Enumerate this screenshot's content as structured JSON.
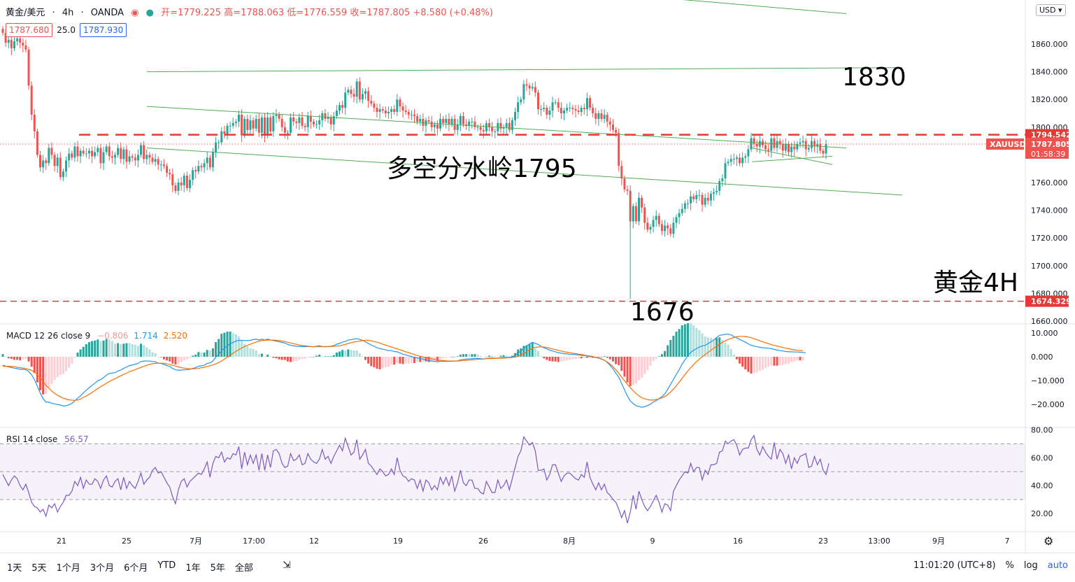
{
  "header": {
    "symbol": "黄金/美元",
    "interval": "4h",
    "broker": "OANDA",
    "ohlc": "开=1779.225 高=1788.063 低=1776.559 收=1787.805 +8.580 (+0.48%)"
  },
  "price_boxes": {
    "bid": "1787.680",
    "spread": "25.0",
    "ask": "1787.930"
  },
  "currency_button": "USD",
  "footer": {
    "ranges": [
      "1天",
      "5天",
      "1个月",
      "3个月",
      "6个月",
      "YTD",
      "1年",
      "5年",
      "全部"
    ],
    "time": "11:01:20 (UTC+8)",
    "percent": "%",
    "log": "log",
    "auto": "auto"
  },
  "macd_label": "MACD 12 26 close 9",
  "macd_values": [
    "−0.806",
    "1.714",
    "2.520"
  ],
  "rsi_label": "RSI 14 close",
  "rsi_value": "56.57",
  "colors": {
    "up": "#26a69a",
    "down": "#ef5350",
    "channel": "#4caf50",
    "macd": "#2196f3",
    "signal": "#ff6d00",
    "rsi": "#7e57c2",
    "dash": "#e53935"
  },
  "chart_data": {
    "type": "candlestick",
    "price_axis_ticks": [
      1860,
      1840,
      1820,
      1800,
      1780,
      1760,
      1740,
      1720,
      1700,
      1680,
      1660
    ],
    "price_axis_labels": [
      "1860.000",
      "1840.000",
      "1820.000",
      "1800.000",
      "1780.000",
      "1760.000",
      "1740.000",
      "1720.000",
      "1700.000",
      "1680.000",
      "1660.000"
    ],
    "macd_axis_labels": [
      "10.000",
      "0.000",
      "−10.000",
      "−20.000"
    ],
    "rsi_axis_labels": [
      "80.00",
      "60.00",
      "40.00",
      "20.00"
    ],
    "time_axis_labels": [
      "21",
      "25",
      "7月",
      "17:00",
      "12",
      "19",
      "26",
      "8月",
      "9",
      "16",
      "23",
      "13:00",
      "9月",
      "7"
    ],
    "ylim": [
      1655,
      1880
    ],
    "closes": [
      1868,
      1861,
      1863,
      1857,
      1862,
      1864,
      1861,
      1859,
      1856,
      1830,
      1809,
      1797,
      1780,
      1771,
      1776,
      1774,
      1785,
      1780,
      1772,
      1778,
      1764,
      1768,
      1776,
      1781,
      1778,
      1786,
      1779,
      1783,
      1781,
      1781,
      1783,
      1779,
      1782,
      1785,
      1774,
      1782,
      1786,
      1779,
      1778,
      1780,
      1785,
      1777,
      1784,
      1775,
      1779,
      1778,
      1776,
      1780,
      1787,
      1777,
      1780,
      1778,
      1775,
      1777,
      1773,
      1773,
      1772,
      1767,
      1766,
      1758,
      1754,
      1760,
      1758,
      1765,
      1756,
      1762,
      1769,
      1768,
      1772,
      1771,
      1774,
      1778,
      1771,
      1782,
      1789,
      1789,
      1797,
      1795,
      1801,
      1801,
      1803,
      1804,
      1809,
      1794,
      1806,
      1798,
      1805,
      1799,
      1806,
      1796,
      1807,
      1794,
      1807,
      1797,
      1808,
      1809,
      1806,
      1800,
      1796,
      1796,
      1807,
      1804,
      1803,
      1807,
      1801,
      1800,
      1808,
      1804,
      1802,
      1802,
      1805,
      1810,
      1806,
      1807,
      1802,
      1808,
      1812,
      1816,
      1814,
      1825,
      1827,
      1824,
      1822,
      1833,
      1820,
      1824,
      1826,
      1819,
      1817,
      1814,
      1811,
      1813,
      1812,
      1810,
      1811,
      1813,
      1811,
      1820,
      1815,
      1812,
      1811,
      1809,
      1809,
      1808,
      1804,
      1806,
      1801,
      1805,
      1804,
      1800,
      1802,
      1799,
      1806,
      1803,
      1806,
      1802,
      1806,
      1798,
      1802,
      1808,
      1802,
      1801,
      1804,
      1804,
      1800,
      1800,
      1798,
      1797,
      1803,
      1800,
      1797,
      1797,
      1803,
      1799,
      1800,
      1803,
      1798,
      1805,
      1811,
      1818,
      1820,
      1831,
      1830,
      1828,
      1829,
      1825,
      1813,
      1813,
      1814,
      1809,
      1812,
      1818,
      1818,
      1814,
      1810,
      1812,
      1814,
      1814,
      1813,
      1812,
      1811,
      1814,
      1813,
      1821,
      1814,
      1810,
      1806,
      1810,
      1806,
      1809,
      1804,
      1802,
      1798,
      1796,
      1772,
      1763,
      1755,
      1754,
      1732,
      1743,
      1732,
      1749,
      1742,
      1731,
      1726,
      1728,
      1733,
      1736,
      1730,
      1725,
      1729,
      1727,
      1723,
      1731,
      1735,
      1738,
      1741,
      1745,
      1745,
      1750,
      1748,
      1751,
      1751,
      1744,
      1749,
      1747,
      1752,
      1753,
      1754,
      1761,
      1763,
      1774,
      1775,
      1777,
      1777,
      1778,
      1774,
      1778,
      1779,
      1784,
      1792,
      1788,
      1786,
      1790,
      1787,
      1784,
      1783,
      1792,
      1785,
      1790,
      1788,
      1783,
      1788,
      1782,
      1786,
      1784,
      1788,
      1789,
      1790,
      1784,
      1785,
      1790,
      1786,
      1788,
      1783,
      1781,
      1788
    ],
    "macd": [
      -3.5,
      -3.9,
      -4.3,
      -4.5,
      -4.8,
      -5,
      -5.3,
      -5.3,
      -5.4,
      -6.2,
      -7.6,
      -9.6,
      -12.4,
      -15.2,
      -17.6,
      -19.1,
      -19.1,
      -19.6,
      -19.8,
      -20.1,
      -20.3,
      -20.7,
      -20.6,
      -20.2,
      -19.6,
      -18.5,
      -17.4,
      -16.4,
      -15.2,
      -14.1,
      -13,
      -12,
      -11.1,
      -10.1,
      -9.6,
      -8.8,
      -7.7,
      -7.1,
      -6.8,
      -6.7,
      -6,
      -5.6,
      -4.9,
      -4.3,
      -3.7,
      -3.5,
      -3.1,
      -2.8,
      -2,
      -1.8,
      -1.8,
      -1.8,
      -2,
      -2.1,
      -2.7,
      -2.8,
      -3.3,
      -3.7,
      -4.1,
      -4.9,
      -5.4,
      -5.7,
      -5.6,
      -5.5,
      -5.4,
      -5.3,
      -4.9,
      -4.6,
      -4,
      -3.8,
      -3.6,
      -2.8,
      -2.6,
      -1.8,
      -0.2,
      1,
      2.6,
      3.6,
      4.6,
      5.4,
      6,
      6.6,
      6.9,
      6.9,
      6.8,
      6.8,
      6.9,
      7.2,
      7.4,
      7,
      7.4,
      7,
      7.4,
      7.1,
      6.8,
      6.6,
      6.3,
      6,
      5.8,
      5.2,
      4.8,
      4.6,
      4.4,
      4.3,
      4.3,
      4.2,
      4.3,
      4.3,
      4.2,
      4.4,
      4.6,
      4.3,
      4.3,
      4.3,
      4.4,
      4.7,
      5.3,
      5.6,
      6.2,
      6.4,
      7,
      7.2,
      7.4,
      7.6,
      7.3,
      6.9,
      6.3,
      5.6,
      4.9,
      4.4,
      3.8,
      3.4,
      3.2,
      2.9,
      2.6,
      2.6,
      2.2,
      2.1,
      1.6,
      1.1,
      0.8,
      0.4,
      0.1,
      -0.3,
      -0.5,
      -0.8,
      -1,
      -1.3,
      -1.6,
      -1.8,
      -1.9,
      -2.1,
      -1.9,
      -1.9,
      -1.9,
      -1.9,
      -1.9,
      -1.8,
      -1.7,
      -1.3,
      -1.1,
      -1,
      -0.9,
      -0.8,
      -0.7,
      -0.7,
      -0.8,
      -0.9,
      -0.8,
      -0.6,
      -0.5,
      -0.6,
      -0.6,
      -0.4,
      -0.3,
      -0.3,
      -0.3,
      -0.1,
      0.6,
      1.6,
      2.4,
      3.5,
      4.4,
      5.4,
      6.1,
      5.6,
      5.2,
      4.3,
      3.8,
      3.3,
      2.8,
      2.4,
      2.1,
      1.7,
      1.5,
      1.3,
      1.2,
      1.1,
      1,
      0.9,
      0.8,
      0.6,
      0.5,
      0.3,
      0.1,
      -0.1,
      -0.3,
      -0.6,
      -1,
      -1.4,
      -2.4,
      -3.6,
      -5.1,
      -6.9,
      -8.6,
      -11.3,
      -13.9,
      -16.5,
      -18.6,
      -19.7,
      -20.6,
      -20.9,
      -21.2,
      -21,
      -20.5,
      -19.9,
      -19,
      -18.4,
      -17.6,
      -16.8,
      -15.6,
      -13.7,
      -11.6,
      -9.6,
      -7.4,
      -5.4,
      -3.1,
      -1.3,
      0.4,
      1.8,
      2.7,
      3.4,
      4.1,
      4.5,
      4.8,
      5.5,
      6.3,
      7,
      8.1,
      9,
      9.2,
      9.4,
      9.5,
      9.2,
      8.5,
      7.9,
      7.3,
      6.7,
      6.1,
      5.4,
      4.8,
      4.5,
      4.2,
      4,
      3.8,
      3.7,
      3.6,
      3.4,
      3.1,
      2.8,
      2.6,
      2.4,
      2.2,
      2.1,
      2.1,
      2,
      2,
      1.9,
      1.8,
      1.7
    ],
    "signal": [
      -4,
      -4,
      -4,
      -4.1,
      -4.2,
      -4.4,
      -4.6,
      -4.8,
      -5,
      -5.3,
      -5.7,
      -6.5,
      -7.5,
      -8.8,
      -10.4,
      -12,
      -13.2,
      -14.4,
      -15.4,
      -16.2,
      -16.8,
      -17.4,
      -17.8,
      -18.1,
      -18.3,
      -18.3,
      -18.2,
      -17.8,
      -17.1,
      -16.5,
      -15.8,
      -15,
      -14.2,
      -13.4,
      -12.6,
      -11.9,
      -11.1,
      -10.4,
      -9.8,
      -9.2,
      -8.6,
      -8,
      -7.4,
      -6.9,
      -6.3,
      -5.9,
      -5.4,
      -4.9,
      -4.5,
      -4,
      -3.6,
      -3.2,
      -2.9,
      -2.8,
      -2.7,
      -2.7,
      -2.8,
      -3,
      -3.2,
      -3.6,
      -3.9,
      -4.3,
      -4.6,
      -4.8,
      -4.9,
      -5.1,
      -5.1,
      -5,
      -4.9,
      -4.6,
      -4.4,
      -4.1,
      -3.8,
      -3.4,
      -3,
      -2.4,
      -1.8,
      -1,
      -0.2,
      0.6,
      1.5,
      2.3,
      3,
      3.7,
      4.3,
      4.8,
      5.3,
      5.7,
      6.2,
      6.5,
      6.8,
      6.9,
      7,
      7,
      7,
      6.9,
      6.8,
      6.6,
      6.4,
      6.1,
      5.8,
      5.5,
      5.2,
      4.9,
      4.7,
      4.6,
      4.4,
      4.3,
      4.2,
      4.2,
      4.2,
      4.2,
      4.2,
      4.2,
      4.3,
      4.4,
      4.5,
      4.6,
      4.9,
      5.2,
      5.6,
      5.9,
      6.2,
      6.4,
      6.6,
      6.8,
      6.9,
      6.9,
      6.7,
      6.4,
      6.1,
      5.8,
      5.3,
      4.9,
      4.5,
      4.1,
      3.7,
      3.3,
      2.9,
      2.5,
      2.1,
      1.7,
      1.3,
      0.9,
      0.5,
      0.2,
      -0.1,
      -0.4,
      -0.6,
      -0.9,
      -1.1,
      -1.3,
      -1.5,
      -1.6,
      -1.7,
      -1.8,
      -1.8,
      -1.8,
      -1.8,
      -1.7,
      -1.6,
      -1.5,
      -1.4,
      -1.3,
      -1.2,
      -1.1,
      -1,
      -0.9,
      -0.8,
      -0.8,
      -0.7,
      -0.7,
      -0.6,
      -0.6,
      -0.6,
      -0.5,
      -0.4,
      -0.3,
      -0.1,
      0.2,
      0.8,
      1.4,
      2.2,
      3,
      3.5,
      4,
      4.1,
      4.2,
      4.1,
      3.9,
      3.6,
      3.3,
      3,
      2.7,
      2.4,
      2.1,
      1.9,
      1.7,
      1.5,
      1.3,
      1.1,
      0.9,
      0.7,
      0.5,
      0.3,
      0.1,
      -0.2,
      -0.5,
      -0.9,
      -1.5,
      -2.2,
      -3.1,
      -4.2,
      -5.5,
      -7,
      -8.6,
      -10.1,
      -11.6,
      -13,
      -14.3,
      -15.5,
      -16.4,
      -17.2,
      -17.7,
      -18,
      -18.2,
      -18.2,
      -18,
      -17.7,
      -17.3,
      -16.7,
      -15.9,
      -14.8,
      -13.6,
      -12.2,
      -10.7,
      -9.1,
      -7.5,
      -6,
      -4.6,
      -3.3,
      -2.1,
      -1,
      0,
      0.9,
      1.8,
      2.7,
      3.6,
      4.5,
      5.3,
      6,
      6.7,
      7.2,
      7.7,
      8.1,
      8.4,
      8.6,
      8.6,
      8.5,
      8.3,
      8,
      7.6,
      7.2,
      6.7,
      6.3,
      5.9,
      5.5,
      5.1,
      4.8,
      4.5,
      4.2,
      3.9,
      3.6,
      3.4,
      3.1,
      2.9,
      2.7,
      2.6,
      2.5
    ],
    "rsi": [
      48,
      44,
      40,
      44,
      47,
      45,
      40,
      37,
      41,
      35,
      28,
      25,
      24,
      21,
      23,
      18,
      26,
      24,
      27,
      21,
      25,
      28,
      33,
      33,
      36,
      43,
      40,
      46,
      38,
      44,
      41,
      41,
      45,
      43,
      38,
      44,
      47,
      40,
      39,
      43,
      45,
      37,
      46,
      38,
      43,
      40,
      38,
      43,
      49,
      41,
      44,
      46,
      51,
      53,
      49,
      50,
      46,
      42,
      39,
      32,
      27,
      37,
      43,
      45,
      39,
      43,
      45,
      47,
      49,
      48,
      52,
      57,
      46,
      56,
      61,
      60,
      64,
      57,
      60,
      59,
      63,
      62,
      68,
      52,
      64,
      55,
      62,
      56,
      62,
      51,
      63,
      51,
      62,
      53,
      65,
      66,
      63,
      56,
      53,
      54,
      63,
      58,
      59,
      62,
      55,
      56,
      63,
      59,
      57,
      56,
      59,
      66,
      59,
      61,
      56,
      61,
      65,
      69,
      65,
      74,
      68,
      62,
      64,
      73,
      59,
      62,
      66,
      56,
      54,
      51,
      48,
      52,
      50,
      47,
      48,
      52,
      48,
      60,
      51,
      47,
      46,
      43,
      45,
      44,
      38,
      44,
      36,
      44,
      42,
      37,
      40,
      37,
      46,
      41,
      46,
      40,
      47,
      36,
      42,
      51,
      42,
      40,
      44,
      44,
      38,
      38,
      35,
      34,
      43,
      39,
      35,
      35,
      44,
      38,
      40,
      44,
      37,
      45,
      53,
      61,
      65,
      75,
      72,
      69,
      71,
      65,
      51,
      51,
      52,
      44,
      48,
      55,
      55,
      49,
      43,
      47,
      49,
      49,
      47,
      45,
      44,
      48,
      46,
      57,
      46,
      41,
      37,
      42,
      37,
      41,
      35,
      33,
      30,
      28,
      23,
      17,
      22,
      13,
      21,
      33,
      23,
      36,
      30,
      25,
      22,
      25,
      29,
      33,
      28,
      21,
      27,
      26,
      22,
      36,
      40,
      44,
      47,
      50,
      49,
      56,
      50,
      53,
      53,
      44,
      51,
      48,
      55,
      55,
      56,
      64,
      65,
      72,
      70,
      72,
      73,
      69,
      62,
      66,
      67,
      67,
      73,
      76,
      66,
      62,
      68,
      64,
      61,
      59,
      71,
      59,
      66,
      63,
      56,
      62,
      52,
      60,
      56,
      61,
      62,
      63,
      53,
      54,
      61,
      55,
      59,
      51,
      48,
      56
    ],
    "hlines": [
      {
        "price": 1794.542,
        "label": "1794.542"
      },
      {
        "price": 1674.329,
        "label": "1674.329"
      }
    ],
    "last_price_label": "1787.805",
    "countdown": "01:58:39",
    "symbol_tag": "XAUUSD",
    "annotations": [
      "1830",
      "多空分水岭1795",
      "黄金4H",
      "1676"
    ]
  }
}
